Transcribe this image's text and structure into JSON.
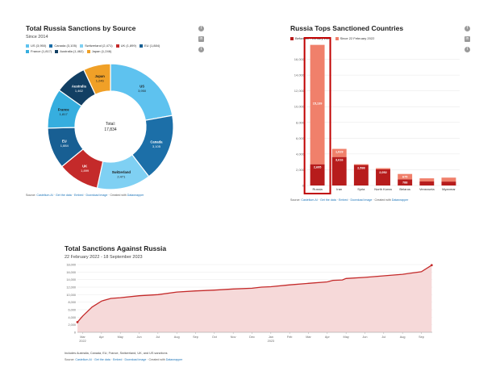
{
  "donut": {
    "title": "Total Russia Sanctions by Source",
    "subtitle": "Since 2014",
    "source": {
      "prefix": "Source:",
      "site": "Castellum.AI",
      "links": [
        "Get the data",
        "Embed",
        "Download image"
      ],
      "created": "Created with",
      "tool": "Datawrapper"
    }
  },
  "bars": {
    "title": "Russia Tops Sanctioned Countries",
    "legend_before": "Before 22 February 2022",
    "legend_since": "Since 22 February 2022",
    "source": {
      "prefix": "Source:",
      "site": "Castellum.AI",
      "links": [
        "Get the data",
        "Embed",
        "Download image"
      ],
      "created": "Created with",
      "tool": "Datawrapper"
    }
  },
  "line": {
    "title": "Total Sanctions Against Russia",
    "subtitle": "22 February 2022 - 18 September 2023",
    "note": "Includes Australia, Canada, EU, France, Switzerland, UK, and US sanctions",
    "source": {
      "prefix": "Source:",
      "site": "Castellum.AI",
      "links": [
        "Get the data",
        "Embed",
        "Download image"
      ],
      "created": "Created with",
      "tool": "Datawrapper"
    }
  },
  "social": [
    "facebook-icon",
    "linkedin-icon",
    "twitter-icon"
  ],
  "chart_data": [
    {
      "type": "pie",
      "title": "Total Russia Sanctions by Source",
      "subtitle": "Since 2014",
      "center_label": "Total:",
      "center_value": "17,834",
      "slices": [
        {
          "name": "US",
          "value": 3950,
          "label": "3,950",
          "legend": "US (3,950)",
          "color": "#5ec2ef"
        },
        {
          "name": "Canada",
          "value": 3105,
          "label": "3,105",
          "legend": "Canada (3,105)",
          "color": "#1c6fa8"
        },
        {
          "name": "Switzerland",
          "value": 2471,
          "label": "2,471",
          "legend": "Switzerland (2,471)",
          "color": "#7fd0f3"
        },
        {
          "name": "UK",
          "value": 1899,
          "label": "1,899",
          "legend": "UK (1,899)",
          "color": "#c42a2a"
        },
        {
          "name": "EU",
          "value": 1884,
          "label": "1,884",
          "legend": "EU (1,884)",
          "color": "#185f93"
        },
        {
          "name": "France",
          "value": 1817,
          "label": "1,817",
          "legend": "France (1,817)",
          "color": "#36aedf"
        },
        {
          "name": "Australia",
          "value": 1462,
          "label": "1,462",
          "legend": "Australia (1,462)",
          "color": "#123f63"
        },
        {
          "name": "Japan",
          "value": 1246,
          "label": "1,246",
          "legend": "Japan (1,246)",
          "color": "#f0a027"
        }
      ]
    },
    {
      "type": "bar",
      "title": "Russia Tops Sanctioned Countries",
      "categories": [
        "Russia",
        "Iran",
        "Syria",
        "North Korea",
        "Belarus",
        "Venezuela",
        "Myanmar"
      ],
      "series": [
        {
          "name": "Before 22 February 2022",
          "values": [
            2695,
            3616,
            2598,
            2052,
            788,
            510,
            500
          ],
          "labels": [
            "2,695",
            "3,616",
            "2,598",
            "2,052",
            "788",
            "",
            ""
          ]
        },
        {
          "name": "Since 22 February 2022",
          "values": [
            15139,
            1029,
            100,
            150,
            675,
            400,
            500
          ],
          "labels": [
            "15,139",
            "1,029",
            "",
            "",
            "675",
            "",
            ""
          ]
        }
      ],
      "ylim": [
        0,
        18000
      ],
      "yticks": [
        0,
        2000,
        4000,
        6000,
        8000,
        10000,
        12000,
        14000,
        16000
      ],
      "ytick_labels": [
        "0",
        "2,000",
        "4,000",
        "6,000",
        "8,000",
        "10,000",
        "12,000",
        "14,000",
        "16,000"
      ],
      "highlight": "Russia"
    },
    {
      "type": "area",
      "title": "Total Sanctions Against Russia",
      "subtitle": "22 February 2022 - 18 September 2023",
      "x_months": [
        0.72,
        1.0,
        1.5,
        2,
        2.5,
        3,
        4,
        5,
        6,
        7,
        8,
        9,
        10,
        10.5,
        11,
        12,
        13,
        14,
        14.3,
        14.8,
        15,
        16,
        17,
        18,
        19,
        19.55
      ],
      "values": [
        2695,
        4300,
        6700,
        8300,
        9000,
        9200,
        9700,
        10000,
        10700,
        11000,
        11200,
        11500,
        11700,
        12000,
        12100,
        12600,
        13000,
        13400,
        13800,
        13900,
        14300,
        14600,
        15000,
        15400,
        16100,
        17834
      ],
      "ylim": [
        0,
        18000
      ],
      "yticks": [
        0,
        2000,
        4000,
        6000,
        8000,
        10000,
        12000,
        14000,
        16000,
        18000
      ],
      "ytick_labels": [
        "0",
        "2,000",
        "4,000",
        "6,000",
        "8,000",
        "10,000",
        "12,000",
        "14,000",
        "16,000",
        "18,000"
      ],
      "xtick_labels": [
        "Mar",
        "Apr",
        "May",
        "Jun",
        "Jul",
        "Aug",
        "Sep",
        "Oct",
        "Nov",
        "Dec",
        "Jan",
        "Feb",
        "Mar",
        "Apr",
        "May",
        "Jun",
        "Jul",
        "Aug",
        "Sep"
      ],
      "xtick_month_index": [
        1,
        2,
        3,
        4,
        5,
        6,
        7,
        8,
        9,
        10,
        11,
        12,
        13,
        14,
        15,
        16,
        17,
        18,
        19
      ],
      "year_labels": [
        "2022",
        "2023"
      ],
      "color": "#c42a2a"
    }
  ]
}
